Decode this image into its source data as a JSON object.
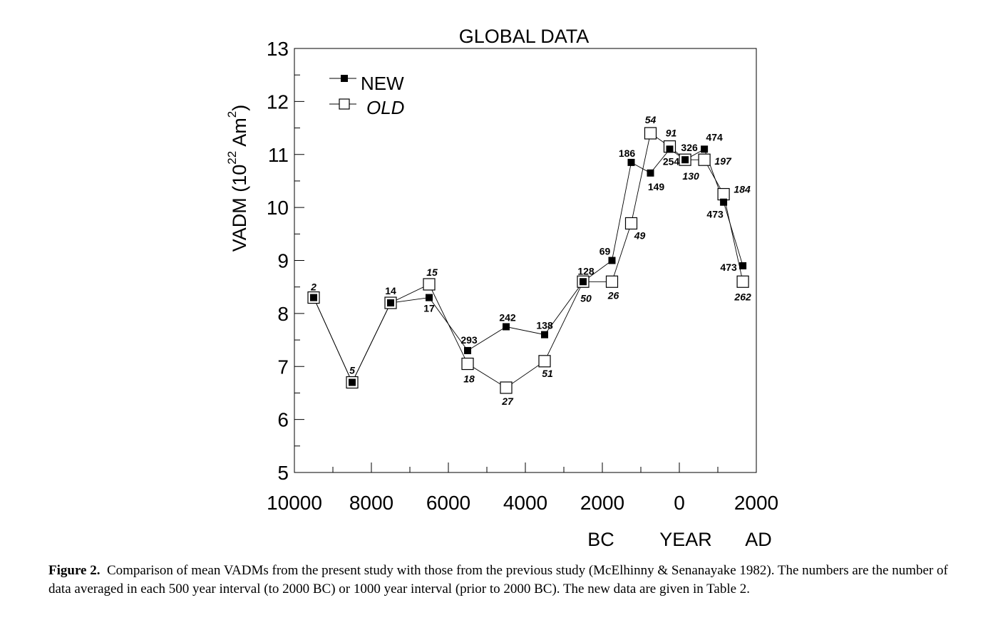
{
  "chart_data": {
    "type": "line",
    "title": "GLOBAL DATA",
    "ylabel": "VADM (10^22 Am^2)",
    "ylabel_parts": {
      "base": "VADM (10",
      "exp1": "22",
      "unit": " Am",
      "exp2": "2",
      "close": ")"
    },
    "xlabel_parts": {
      "bc": "BC",
      "year": "YEAR",
      "ad": "AD"
    },
    "xlim": [
      -10000,
      2000
    ],
    "ylim": [
      5,
      13
    ],
    "x_ticks": [
      -10000,
      -8000,
      -6000,
      -4000,
      -2000,
      0,
      2000
    ],
    "x_tick_labels": [
      "10000",
      "8000",
      "6000",
      "4000",
      "2000",
      "0",
      "2000"
    ],
    "y_ticks": [
      5,
      6,
      7,
      8,
      9,
      10,
      11,
      12,
      13
    ],
    "y_tick_labels": [
      "5",
      "6",
      "7",
      "8",
      "9",
      "10",
      "11",
      "12",
      "13"
    ],
    "legend_placement": "top-left",
    "series": [
      {
        "name": "NEW",
        "marker": "filled-square",
        "points": [
          {
            "x": -9500,
            "y": 8.3,
            "label": ""
          },
          {
            "x": -8500,
            "y": 6.7,
            "label": ""
          },
          {
            "x": -7500,
            "y": 8.2,
            "label": "14"
          },
          {
            "x": -6500,
            "y": 8.3,
            "label": "17"
          },
          {
            "x": -5500,
            "y": 7.3,
            "label": "293"
          },
          {
            "x": -4500,
            "y": 7.75,
            "label": "242"
          },
          {
            "x": -3500,
            "y": 7.6,
            "label": "138"
          },
          {
            "x": -2500,
            "y": 8.6,
            "label": "128"
          },
          {
            "x": -1750,
            "y": 9.0,
            "label": "69"
          },
          {
            "x": -1250,
            "y": 10.85,
            "label": "186"
          },
          {
            "x": -750,
            "y": 10.65,
            "label": "149"
          },
          {
            "x": -250,
            "y": 11.1,
            "label": "254"
          },
          {
            "x": 150,
            "y": 10.9,
            "label": "326"
          },
          {
            "x": 650,
            "y": 11.1,
            "label": "474"
          },
          {
            "x": 1150,
            "y": 10.1,
            "label": "473"
          },
          {
            "x": 1650,
            "y": 8.9,
            "label": "473"
          }
        ]
      },
      {
        "name": "OLD",
        "marker": "open-square",
        "points": [
          {
            "x": -9500,
            "y": 8.3,
            "label": "2"
          },
          {
            "x": -8500,
            "y": 6.7,
            "label": "5"
          },
          {
            "x": -7500,
            "y": 8.2,
            "label": ""
          },
          {
            "x": -6500,
            "y": 8.55,
            "label": "15"
          },
          {
            "x": -5500,
            "y": 7.05,
            "label": "18"
          },
          {
            "x": -4500,
            "y": 6.6,
            "label": "27"
          },
          {
            "x": -3500,
            "y": 7.1,
            "label": "51"
          },
          {
            "x": -2500,
            "y": 8.6,
            "label": "50"
          },
          {
            "x": -1750,
            "y": 8.6,
            "label": "26"
          },
          {
            "x": -1250,
            "y": 9.7,
            "label": "49"
          },
          {
            "x": -750,
            "y": 11.4,
            "label": "54"
          },
          {
            "x": -250,
            "y": 11.15,
            "label": "91"
          },
          {
            "x": 150,
            "y": 10.9,
            "label": "130"
          },
          {
            "x": 650,
            "y": 10.9,
            "label": "197"
          },
          {
            "x": 1150,
            "y": 10.25,
            "label": "184"
          },
          {
            "x": 1650,
            "y": 8.6,
            "label": "262"
          }
        ]
      }
    ]
  },
  "caption": {
    "label": "Figure 2.",
    "text": "Comparison of mean VADMs from the present study with those from the previous study (McElhinny & Senanayake 1982). The numbers are the number of data averaged in each 500 year interval (to 2000 BC) or 1000 year interval (prior to 2000 BC). The new data are given in Table 2."
  }
}
